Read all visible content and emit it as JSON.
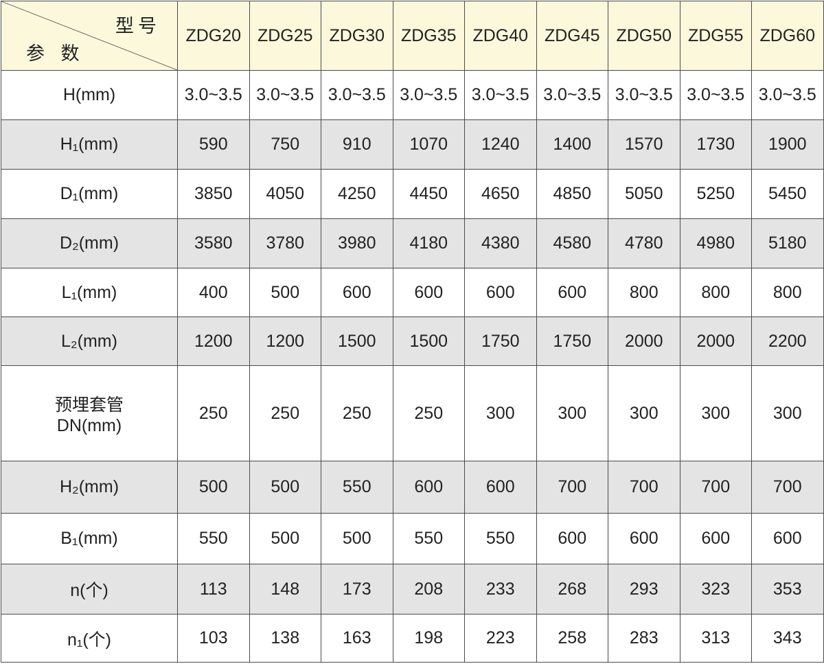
{
  "corner": {
    "top_right": "型号",
    "bottom_left": "参 数"
  },
  "models": [
    "ZDG20",
    "ZDG25",
    "ZDG30",
    "ZDG35",
    "ZDG40",
    "ZDG45",
    "ZDG50",
    "ZDG55",
    "ZDG60"
  ],
  "colors": {
    "header_bg": "#fbf8dc",
    "shaded_row_bg": "#e4e4e4",
    "border": "#4a4a4a"
  },
  "rows": [
    {
      "label": "H(mm)",
      "shaded": false,
      "values": [
        "3.0~3.5",
        "3.0~3.5",
        "3.0~3.5",
        "3.0~3.5",
        "3.0~3.5",
        "3.0~3.5",
        "3.0~3.5",
        "3.0~3.5",
        "3.0~3.5"
      ]
    },
    {
      "label": "H₁(mm)",
      "shaded": true,
      "values": [
        "590",
        "750",
        "910",
        "1070",
        "1240",
        "1400",
        "1570",
        "1730",
        "1900"
      ]
    },
    {
      "label": "D₁(mm)",
      "shaded": false,
      "values": [
        "3850",
        "4050",
        "4250",
        "4450",
        "4650",
        "4850",
        "5050",
        "5250",
        "5450"
      ]
    },
    {
      "label": "D₂(mm)",
      "shaded": true,
      "values": [
        "3580",
        "3780",
        "3980",
        "4180",
        "4380",
        "4580",
        "4780",
        "4980",
        "5180"
      ]
    },
    {
      "label": "L₁(mm)",
      "shaded": false,
      "values": [
        "400",
        "500",
        "600",
        "600",
        "600",
        "600",
        "800",
        "800",
        "800"
      ]
    },
    {
      "label": "L₂(mm)",
      "shaded": true,
      "values": [
        "1200",
        "1200",
        "1500",
        "1500",
        "1750",
        "1750",
        "2000",
        "2000",
        "2200"
      ]
    },
    {
      "label": "预埋套管",
      "label2": "DN(mm)",
      "shaded": false,
      "values": [
        "250",
        "250",
        "250",
        "250",
        "300",
        "300",
        "300",
        "300",
        "300"
      ]
    },
    {
      "label": "H₂(mm)",
      "shaded": true,
      "values": [
        "500",
        "500",
        "550",
        "600",
        "600",
        "700",
        "700",
        "700",
        "700"
      ]
    },
    {
      "label": "B₁(mm)",
      "shaded": false,
      "values": [
        "550",
        "500",
        "500",
        "550",
        "550",
        "600",
        "600",
        "600",
        "600"
      ]
    },
    {
      "label": "n(个)",
      "shaded": true,
      "values": [
        "113",
        "148",
        "173",
        "208",
        "233",
        "268",
        "293",
        "323",
        "353"
      ]
    },
    {
      "label": "n₁(个)",
      "shaded": false,
      "values": [
        "103",
        "138",
        "163",
        "198",
        "223",
        "258",
        "283",
        "313",
        "343"
      ]
    }
  ]
}
